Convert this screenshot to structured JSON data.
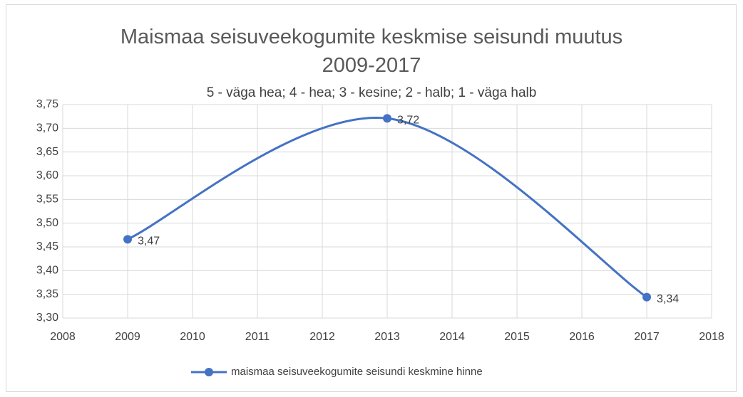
{
  "chart_data": {
    "type": "line",
    "title": "Maismaa seisuveekogumite keskmise seisundi muutus 2009-2017",
    "subtitle": "5 - väga hea; 4 - hea; 3 - kesine; 2 - halb; 1 - väga halb",
    "x": [
      2009,
      2013,
      2017
    ],
    "series": [
      {
        "name": "maismaa seisuveekogumite seisundi keskmine hinne",
        "color": "#4472c4",
        "values": [
          3.466,
          3.721,
          3.344
        ],
        "value_labels": [
          "3,47",
          "3,72",
          "3,34"
        ]
      }
    ],
    "xlim": [
      2008,
      2018
    ],
    "xticks": [
      2008,
      2009,
      2010,
      2011,
      2012,
      2013,
      2014,
      2015,
      2016,
      2017,
      2018
    ],
    "ylim": [
      3.3,
      3.75
    ],
    "yticks": [
      {
        "value": 3.3,
        "label": "3,30"
      },
      {
        "value": 3.35,
        "label": "3,35"
      },
      {
        "value": 3.4,
        "label": "3,40"
      },
      {
        "value": 3.45,
        "label": "3,45"
      },
      {
        "value": 3.5,
        "label": "3,50"
      },
      {
        "value": 3.55,
        "label": "3,55"
      },
      {
        "value": 3.6,
        "label": "3,60"
      },
      {
        "value": 3.65,
        "label": "3,65"
      },
      {
        "value": 3.7,
        "label": "3,70"
      },
      {
        "value": 3.75,
        "label": "3,75"
      }
    ],
    "grid": true,
    "smooth": true,
    "legend": "bottom"
  }
}
